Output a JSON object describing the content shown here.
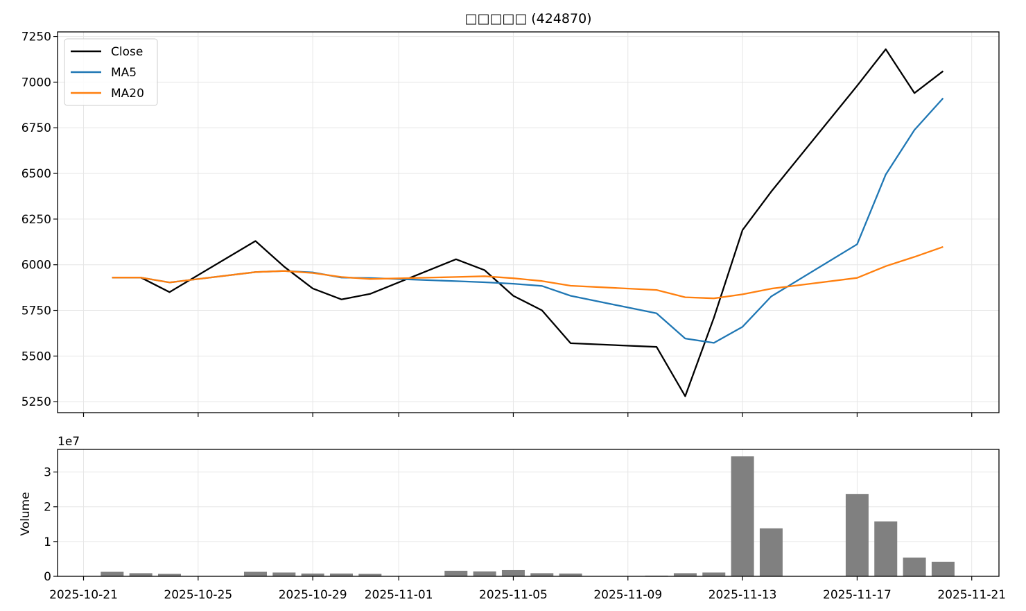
{
  "chart_data": [
    {
      "type": "line",
      "title": "□□□□□ (424870)",
      "xlabel": "",
      "ylabel": "",
      "ylim": [
        5190,
        7275
      ],
      "yticks": [
        5250,
        5500,
        5750,
        6000,
        6250,
        6500,
        6750,
        7000,
        7250
      ],
      "grid": true,
      "legend_position": "top-left",
      "x": [
        "2025-10-22",
        "2025-10-23",
        "2025-10-24",
        "2025-10-27",
        "2025-10-28",
        "2025-10-29",
        "2025-10-30",
        "2025-10-31",
        "2025-11-03",
        "2025-11-04",
        "2025-11-05",
        "2025-11-06",
        "2025-11-07",
        "2025-11-10",
        "2025-11-11",
        "2025-11-12",
        "2025-11-13",
        "2025-11-14",
        "2025-11-17",
        "2025-11-18",
        "2025-11-19",
        "2025-11-20"
      ],
      "series": [
        {
          "name": "Close",
          "color": "#000000",
          "values": [
            5930,
            5930,
            5850,
            6130,
            5990,
            5870,
            5810,
            5840,
            6030,
            5970,
            5830,
            5750,
            5570,
            5550,
            5280,
            5710,
            6190,
            6400,
            6980,
            7180,
            6940,
            7060
          ]
        },
        {
          "name": "MA5",
          "color": "#1f77b4",
          "values": [
            5930,
            5930,
            5903,
            5960,
            5966,
            5958,
            5930,
            5927,
            5910,
            5904,
            5896,
            5884,
            5830,
            5734,
            5596,
            5572,
            5660,
            5826,
            6112,
            6494,
            6738,
            6912
          ]
        },
        {
          "name": "MA20",
          "color": "#ff7f0e",
          "values": [
            5930,
            5930,
            5903,
            5960,
            5966,
            5955,
            5933,
            5922,
            5933,
            5937,
            5926,
            5911,
            5885,
            5862,
            5822,
            5816,
            5838,
            5869,
            5928,
            5992,
            6043,
            6098
          ]
        }
      ]
    },
    {
      "type": "bar",
      "title": "",
      "xlabel": "",
      "ylabel": "Volume",
      "offset_text": "1e7",
      "ylim": [
        0,
        3.65
      ],
      "yticks": [
        0,
        1,
        2,
        3
      ],
      "grid": true,
      "x": [
        "2025-10-22",
        "2025-10-23",
        "2025-10-24",
        "2025-10-27",
        "2025-10-28",
        "2025-10-29",
        "2025-10-30",
        "2025-10-31",
        "2025-11-03",
        "2025-11-04",
        "2025-11-05",
        "2025-11-06",
        "2025-11-07",
        "2025-11-10",
        "2025-11-11",
        "2025-11-12",
        "2025-11-13",
        "2025-11-14",
        "2025-11-17",
        "2025-11-18",
        "2025-11-19",
        "2025-11-20"
      ],
      "values": [
        0.13,
        0.09,
        0.07,
        0.13,
        0.11,
        0.08,
        0.08,
        0.07,
        0.16,
        0.14,
        0.18,
        0.09,
        0.08,
        0.02,
        0.09,
        0.11,
        3.45,
        1.38,
        2.37,
        1.58,
        0.54,
        0.42
      ],
      "color": "#808080",
      "xticks": [
        "2025-10-21",
        "2025-10-25",
        "2025-10-29",
        "2025-11-01",
        "2025-11-05",
        "2025-11-09",
        "2025-11-13",
        "2025-11-17",
        "2025-11-21"
      ]
    }
  ]
}
